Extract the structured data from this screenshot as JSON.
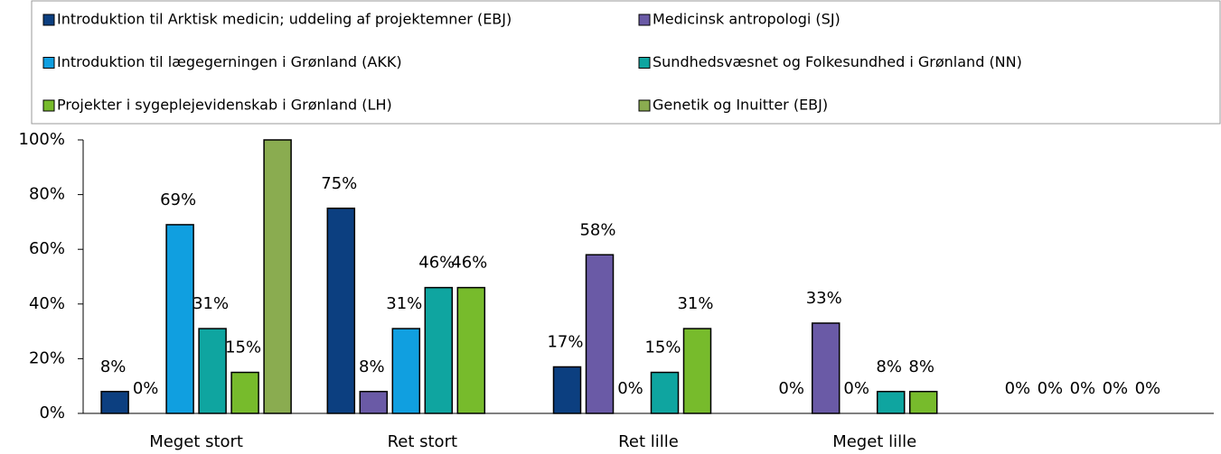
{
  "chart_data": {
    "type": "bar",
    "categories": [
      "Meget stort",
      "Ret stort",
      "Ret lille",
      "Meget lille",
      null
    ],
    "series": [
      {
        "name": "Introduktion til Arktisk medicin; uddeling af projektemner (EBJ)",
        "color": "#0c3f80",
        "values": [
          8,
          75,
          17,
          0,
          0
        ],
        "value_labels": [
          "8%",
          "75%",
          "17%",
          "0%",
          "0%"
        ]
      },
      {
        "name": "Medicinsk antropologi (SJ)",
        "color": "#6a5aa6",
        "values": [
          0,
          8,
          58,
          33,
          0
        ],
        "value_labels": [
          "0%",
          "8%",
          "58%",
          "33%",
          "0%"
        ]
      },
      {
        "name": "Introduktion til lægegerningen i Grønland (AKK)",
        "color": "#109fe0",
        "values": [
          69,
          31,
          0,
          0,
          0
        ],
        "value_labels": [
          "69%",
          "31%",
          "0%",
          "0%",
          "0%"
        ]
      },
      {
        "name": "Sundhedsvæsnet og Folkesundhed i Grønland (NN)",
        "color": "#0fa5a0",
        "values": [
          31,
          46,
          15,
          8,
          0
        ],
        "value_labels": [
          "31%",
          "46%",
          "15%",
          "8%",
          "0%"
        ]
      },
      {
        "name": "Projekter i sygeplejevidenskab i Grønland (LH)",
        "color": "#77bb2c",
        "values": [
          15,
          46,
          31,
          8,
          0
        ],
        "value_labels": [
          "15%",
          "46%",
          "31%",
          "8%",
          "0%"
        ]
      },
      {
        "name": "Genetik og Inuitter (EBJ)",
        "color": "#8aac50",
        "values": [
          100,
          null,
          null,
          null,
          null
        ]
      }
    ],
    "ylim": [
      0,
      100
    ],
    "yticks": [
      {
        "value": 0,
        "label": "0%"
      },
      {
        "value": 20,
        "label": "20%"
      },
      {
        "value": 40,
        "label": "40%"
      },
      {
        "value": 60,
        "label": "60%"
      },
      {
        "value": 80,
        "label": "80%"
      },
      {
        "value": 100,
        "label": "100%"
      }
    ],
    "grid": false,
    "legend": "top"
  }
}
